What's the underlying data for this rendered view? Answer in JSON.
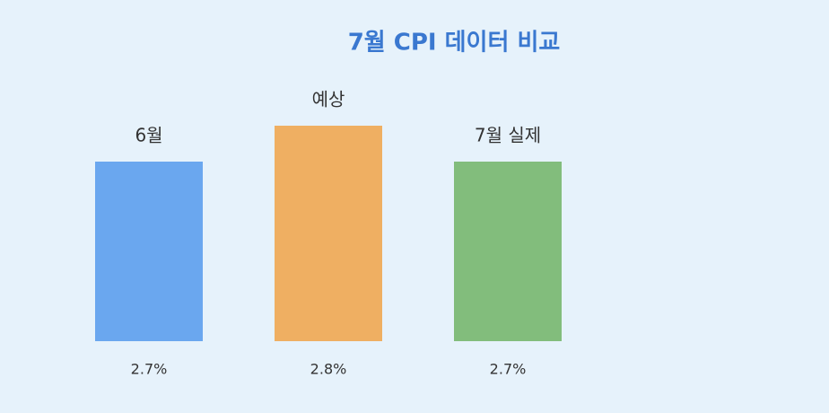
{
  "chart_data": {
    "type": "bar",
    "title": "7월 CPI 데이터 비교",
    "categories": [
      "6월",
      "예상",
      "7월 실제"
    ],
    "values": [
      2.7,
      2.8,
      2.7
    ],
    "value_labels": [
      "2.7%",
      "2.8%",
      "2.7%"
    ],
    "colors": [
      "#6aa7ef",
      "#efaf62",
      "#82bd7c"
    ],
    "ylim": [
      2.2,
      2.9
    ]
  }
}
